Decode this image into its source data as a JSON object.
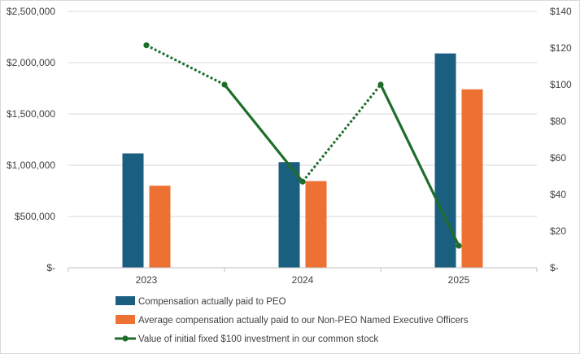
{
  "chart_data": {
    "type": "bar",
    "categories": [
      "2023",
      "2024",
      "2025"
    ],
    "series": [
      {
        "name": "Compensation actually paid to  PEO",
        "kind": "bar",
        "axis": "left",
        "color": "#1a5e80",
        "values": [
          1115000,
          1030000,
          2090000
        ]
      },
      {
        "name": "Average compensation actually paid to our Non-PEO Named Executive Officers",
        "kind": "bar",
        "axis": "left",
        "color": "#ed7133",
        "values": [
          800000,
          845000,
          1740000
        ]
      },
      {
        "name": "Value of initial fixed $100 investment in our common stock",
        "kind": "line",
        "axis": "right",
        "color": "#1e6e2a",
        "x": [
          "2023",
          "mid-2023",
          "2024",
          "mid-2024",
          "2025"
        ],
        "values": [
          121.5,
          100,
          47,
          100,
          12
        ],
        "segment_styles": [
          "dotted",
          "solid",
          "dotted",
          "solid"
        ]
      }
    ],
    "ylim_left": [
      0,
      2500000
    ],
    "ylim_right": [
      0,
      140
    ],
    "left_tick_labels": [
      "$-",
      "$500,000",
      "$1,000,000",
      "$1,500,000",
      "$2,000,000",
      "$2,500,000"
    ],
    "right_tick_labels": [
      "$-",
      "$20",
      "$40",
      "$60",
      "$80",
      "$100",
      "$120",
      "$140"
    ],
    "xlabel": "",
    "ylabel": "",
    "grid": true,
    "legend_position": "bottom"
  }
}
